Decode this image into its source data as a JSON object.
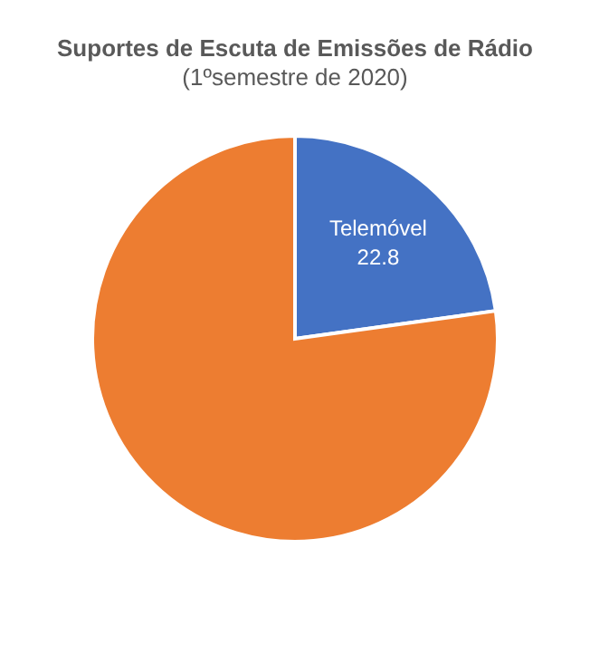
{
  "chart_data": {
    "type": "pie",
    "title": "Suportes de Escuta de Emissões de Rádio",
    "subtitle": "(1ºsemestre de 2020)",
    "categories": [
      "Telemóvel",
      null
    ],
    "values": [
      22.8,
      77.2
    ],
    "value_labels": [
      "22.8",
      null
    ],
    "colors": [
      "#4472c4",
      "#ed7d31"
    ],
    "legend": false
  }
}
